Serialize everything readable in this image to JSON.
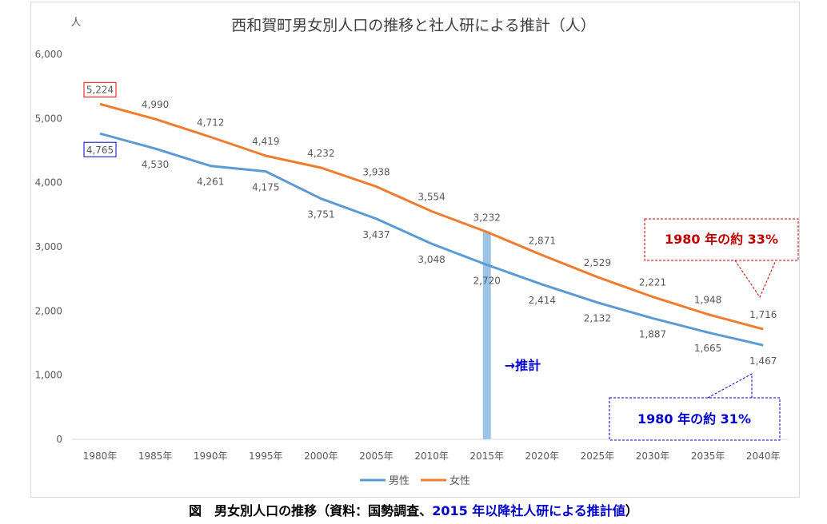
{
  "chart_data": {
    "type": "line",
    "title": "西和賀町男女別人口の推移と社人研による推計（人）",
    "ylabel": "人",
    "categories": [
      "1980年",
      "1985年",
      "1990年",
      "1995年",
      "2000年",
      "2005年",
      "2010年",
      "2015年",
      "2020年",
      "2025年",
      "2030年",
      "2035年",
      "2040年"
    ],
    "ylim": [
      0,
      6000
    ],
    "yticks": [
      "0",
      "1,000",
      "2,000",
      "3,000",
      "4,000",
      "5,000",
      "6,000"
    ],
    "grid": false,
    "legend_position": "bottom",
    "series": [
      {
        "name": "男性",
        "color": "#5b9bd5",
        "values": [
          4765,
          4530,
          4261,
          4175,
          3751,
          3437,
          3048,
          2720,
          2414,
          2132,
          1887,
          1665,
          1467
        ],
        "labels": [
          "4,765",
          "4,530",
          "4,261",
          "4,175",
          "3,751",
          "3,437",
          "3,048",
          "2,720",
          "2,414",
          "2,132",
          "1,887",
          "1,665",
          "1,467"
        ]
      },
      {
        "name": "女性",
        "color": "#ed7d31",
        "values": [
          5224,
          4990,
          4712,
          4419,
          4232,
          3938,
          3554,
          3232,
          2871,
          2529,
          2221,
          1948,
          1716
        ],
        "labels": [
          "5,224",
          "4,990",
          "4,712",
          "4,419",
          "4,232",
          "3,938",
          "3,554",
          "3,232",
          "2,871",
          "2,529",
          "2,221",
          "1,948",
          "1,716"
        ]
      }
    ],
    "projection_marker": {
      "category": "2015年",
      "value": 3232,
      "color": "#9dc3e6",
      "label": "→推計",
      "label_color": "#0000cc"
    },
    "annotations": [
      {
        "text": "1980 年の約 33%",
        "color": "#c00000",
        "border_color": "#c00000"
      },
      {
        "text": "1980 年の約 31%",
        "color": "#0000cc",
        "border_color": "#0000cc"
      }
    ],
    "highlight_boxes": [
      {
        "series": "女性",
        "index": 0,
        "color": "#ff0000"
      },
      {
        "series": "男性",
        "index": 0,
        "color": "#0000cc"
      }
    ]
  },
  "caption": {
    "prefix": "図　男女別人口の推移（資料：国勢調査、",
    "highlight": "2015 年以降社人研による推計値",
    "suffix": "）"
  }
}
